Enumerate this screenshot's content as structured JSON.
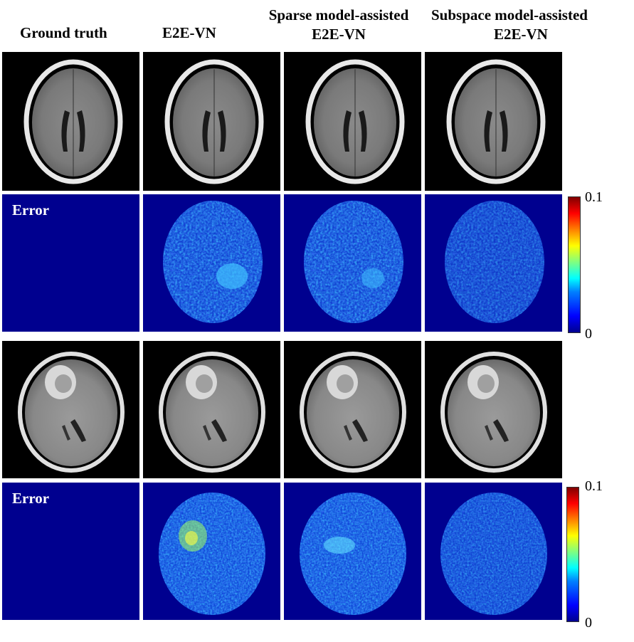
{
  "columns": [
    {
      "line1": "Ground truth",
      "line2": ""
    },
    {
      "line1": "E2E-VN",
      "line2": ""
    },
    {
      "line1": "Sparse model-assisted",
      "line2": "E2E-VN"
    },
    {
      "line1": "Subspace model-assisted",
      "line2": "E2E-VN"
    }
  ],
  "error_label": "Error",
  "colorbar": {
    "max_label": "0.1",
    "min_label": "0",
    "colormap": "jet"
  },
  "colors": {
    "error_background": "#00008f",
    "mri_background": "#000000"
  }
}
